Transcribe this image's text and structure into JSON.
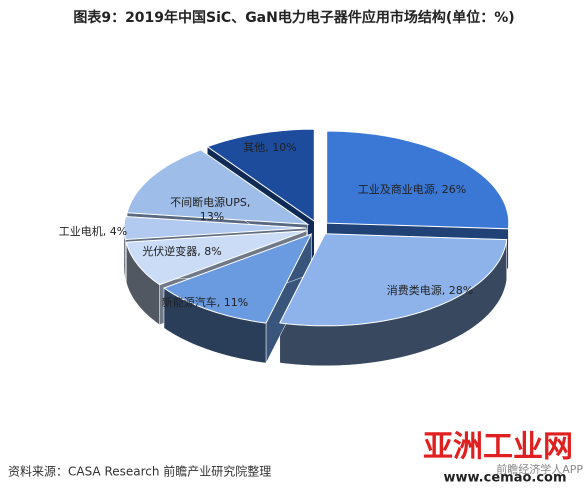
{
  "chart_data": {
    "type": "pie3d",
    "title": "图表9：2019年中国SiC、GaN电力电子器件应用市场结构(单位：%)",
    "categories": [
      "工业及商业电源",
      "消费类电源",
      "新能源汽车",
      "光伏逆变器",
      "工业电机",
      "不间断电源UPS",
      "其他"
    ],
    "values": [
      26,
      28,
      11,
      8,
      4,
      13,
      10
    ],
    "value_labels": [
      "工业及商业电源, 26%",
      "消费类电源, 28%",
      "新能源汽车, 11%",
      "光伏逆变器, 8%",
      "工业电机, 4%",
      "不间断电源UPS, 13%",
      "其他, 10%"
    ],
    "colors": [
      "#3b78d6",
      "#8db3ea",
      "#6a9ae0",
      "#cadcf6",
      "#b2caef",
      "#9ebde9",
      "#1d4c9c"
    ],
    "source": "资料来源：CASA Research 前瞻产业研究院整理",
    "logo": "亚洲工业网",
    "logo_url": "www.cemao.com",
    "app": "前瞻经济学人APP"
  }
}
